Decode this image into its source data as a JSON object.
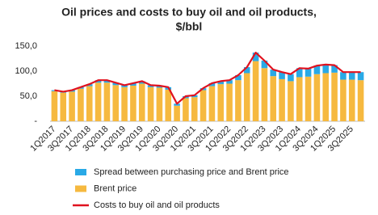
{
  "chart_data": {
    "type": "bar",
    "title": [
      "Oil prices and costs to buy oil and oil products,",
      "$/bbl"
    ],
    "categories": [
      "1Q2017",
      null,
      "3Q2017",
      null,
      "1Q2018",
      null,
      "3Q2018",
      null,
      "1Q2019",
      null,
      "3Q2019",
      null,
      "1Q2020",
      null,
      "3Q2020",
      null,
      "1Q2021",
      null,
      "3Q2021",
      null,
      "1Q2022",
      null,
      "3Q2022",
      null,
      "1Q2023",
      null,
      "3Q2023",
      null,
      "1Q2024",
      null,
      "3Q2024",
      null,
      "1Q2025",
      null,
      "3Q2025",
      null
    ],
    "series": [
      {
        "name": "Spread between purchasing price and Brent price",
        "color": "#29a9e6",
        "type": "bar",
        "values": [
          2,
          2,
          3,
          3,
          4,
          5,
          5,
          5,
          4,
          5,
          5,
          4,
          4,
          5,
          4,
          4,
          4,
          4,
          6,
          6,
          7,
          10,
          12,
          17,
          15,
          13,
          14,
          14,
          18,
          16,
          17,
          17,
          15,
          15,
          15,
          16
        ]
      },
      {
        "name": "Brent price",
        "color": "#f6b93f",
        "type": "bar",
        "values": [
          60,
          57,
          59,
          65,
          70,
          77,
          77,
          72,
          68,
          71,
          75,
          68,
          67,
          63,
          31,
          46,
          48,
          62,
          70,
          74,
          75,
          82,
          96,
          120,
          106,
          90,
          84,
          80,
          88,
          89,
          94,
          96,
          97,
          83,
          83,
          82
        ]
      },
      {
        "name": "Costs to buy oil and oil products",
        "color": "#e0121f",
        "type": "line",
        "values": [
          62,
          59,
          62,
          68,
          74,
          82,
          82,
          77,
          72,
          76,
          80,
          72,
          71,
          68,
          35,
          50,
          52,
          66,
          76,
          80,
          82,
          92,
          108,
          137,
          121,
          103,
          98,
          94,
          106,
          105,
          111,
          113,
          112,
          98,
          98,
          98
        ]
      }
    ],
    "ylim": [
      0,
      150
    ],
    "yticks": [
      {
        "value": 0,
        "label": "-"
      },
      {
        "value": 50,
        "label": "50,0"
      },
      {
        "value": 100,
        "label": "100,0"
      },
      {
        "value": 150,
        "label": "150,0"
      }
    ],
    "grid": false
  }
}
